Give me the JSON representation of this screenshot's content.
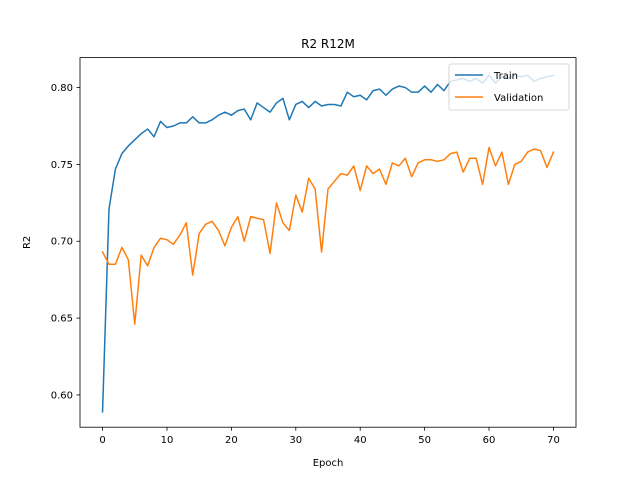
{
  "chart_data": {
    "type": "line",
    "title": "R2 R12M",
    "xlabel": "Epoch",
    "ylabel": "R2",
    "xlim": [
      -3.5,
      73.5
    ],
    "ylim": [
      0.579,
      0.8195
    ],
    "xticks": [
      0,
      10,
      20,
      30,
      40,
      50,
      60,
      70
    ],
    "yticks": [
      0.6,
      0.65,
      0.7,
      0.75,
      0.8
    ],
    "ytick_labels": [
      "0.60",
      "0.65",
      "0.70",
      "0.75",
      "0.80"
    ],
    "grid": false,
    "legend": "top-right",
    "x": [
      0,
      1,
      2,
      3,
      4,
      5,
      6,
      7,
      8,
      9,
      10,
      11,
      12,
      13,
      14,
      15,
      16,
      17,
      18,
      19,
      20,
      21,
      22,
      23,
      24,
      25,
      26,
      27,
      28,
      29,
      30,
      31,
      32,
      33,
      34,
      35,
      36,
      37,
      38,
      39,
      40,
      41,
      42,
      43,
      44,
      45,
      46,
      47,
      48,
      49,
      50,
      51,
      52,
      53,
      54,
      55,
      56,
      57,
      58,
      59,
      60,
      61,
      62,
      63,
      64,
      65,
      66,
      67,
      68,
      69,
      70
    ],
    "series": [
      {
        "name": "Train",
        "color": "#1f77b4",
        "values": [
          0.589,
          0.721,
          0.747,
          0.757,
          0.762,
          0.766,
          0.77,
          0.773,
          0.768,
          0.778,
          0.774,
          0.775,
          0.777,
          0.777,
          0.781,
          0.777,
          0.777,
          0.779,
          0.782,
          0.784,
          0.782,
          0.785,
          0.786,
          0.779,
          0.79,
          0.787,
          0.784,
          0.79,
          0.793,
          0.779,
          0.789,
          0.791,
          0.787,
          0.791,
          0.788,
          0.789,
          0.789,
          0.788,
          0.797,
          0.794,
          0.795,
          0.792,
          0.798,
          0.799,
          0.795,
          0.799,
          0.801,
          0.8,
          0.797,
          0.797,
          0.801,
          0.797,
          0.802,
          0.798,
          0.804,
          0.805,
          0.806,
          0.804,
          0.806,
          0.803,
          0.808,
          0.803,
          0.807,
          0.806,
          0.808,
          0.807,
          0.808,
          0.804,
          0.806,
          0.807,
          0.808
        ]
      },
      {
        "name": "Validation",
        "color": "#ff7f0e",
        "values": [
          0.693,
          0.685,
          0.685,
          0.696,
          0.688,
          0.646,
          0.691,
          0.684,
          0.696,
          0.702,
          0.701,
          0.698,
          0.704,
          0.712,
          0.678,
          0.705,
          0.711,
          0.713,
          0.707,
          0.697,
          0.709,
          0.716,
          0.7,
          0.716,
          0.715,
          0.714,
          0.692,
          0.725,
          0.712,
          0.707,
          0.73,
          0.719,
          0.741,
          0.734,
          0.693,
          0.734,
          0.739,
          0.744,
          0.743,
          0.749,
          0.733,
          0.749,
          0.744,
          0.747,
          0.737,
          0.751,
          0.749,
          0.754,
          0.742,
          0.751,
          0.753,
          0.753,
          0.752,
          0.753,
          0.757,
          0.758,
          0.745,
          0.754,
          0.754,
          0.737,
          0.761,
          0.749,
          0.758,
          0.737,
          0.75,
          0.752,
          0.758,
          0.76,
          0.759,
          0.748,
          0.758
        ]
      }
    ]
  }
}
